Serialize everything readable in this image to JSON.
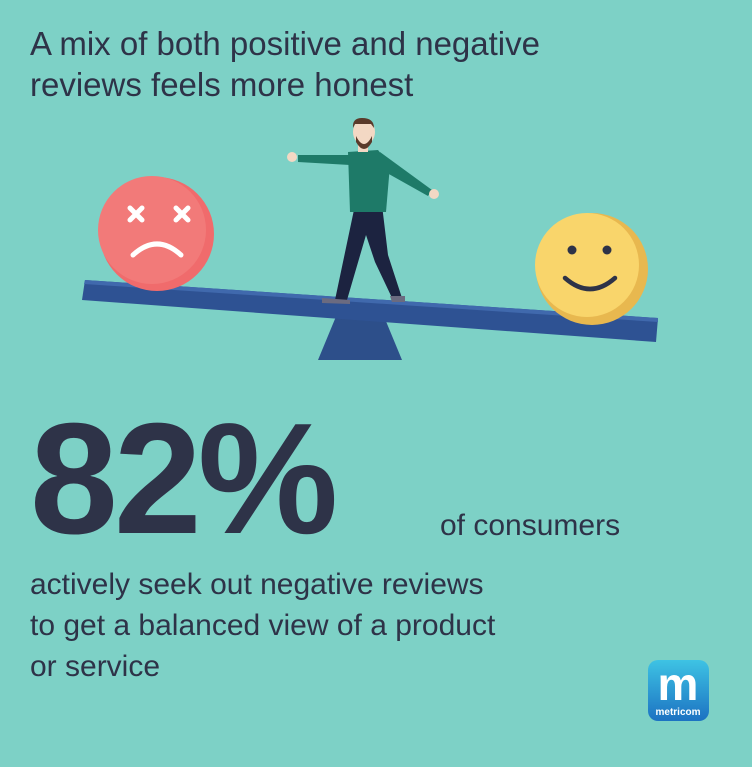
{
  "headline": [
    "A mix of both positive and negative",
    "reviews feels more honest"
  ],
  "stat": "82%",
  "stat_caption": "of consumers",
  "body": [
    "actively seek out negative reviews",
    "to get a balanced view of a product",
    "or service"
  ],
  "logo": {
    "letter": "m",
    "name": "metricom"
  }
}
